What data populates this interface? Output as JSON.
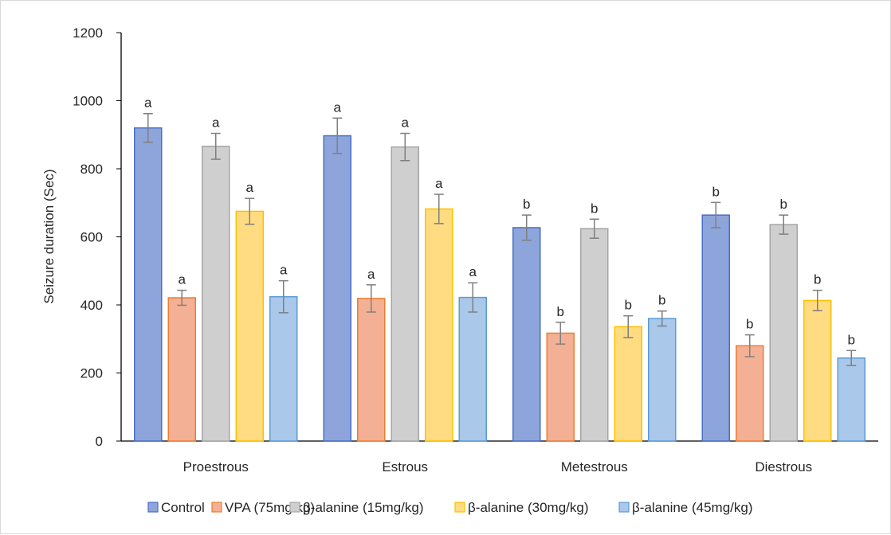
{
  "chart_data": {
    "type": "bar",
    "ylabel": "Seizure duration (Sec)",
    "xlabel": "",
    "ylim": [
      0,
      1200
    ],
    "yticks": [
      0,
      200,
      400,
      600,
      800,
      1000,
      1200
    ],
    "categories": [
      "Proestrous",
      "Estrous",
      "Metestrous",
      "Diestrous"
    ],
    "legend_position": "bottom",
    "grid": false,
    "series": [
      {
        "name": "Control",
        "color": "#8ea5db",
        "edge": "#4a6fc4",
        "values": [
          920,
          897,
          627,
          664
        ],
        "errors": [
          42,
          52,
          37,
          37
        ],
        "labels": [
          "a",
          "a",
          "b",
          "b"
        ]
      },
      {
        "name": "VPA (75mg/kg)",
        "color": "#f4b094",
        "edge": "#ed7d31",
        "values": [
          421,
          419,
          317,
          280
        ],
        "errors": [
          22,
          40,
          32,
          32
        ],
        "labels": [
          "a",
          "a",
          "b",
          "b"
        ]
      },
      {
        "name": "β-alanine (15mg/kg)",
        "color": "#cfcfcf",
        "edge": "#a5a5a5",
        "values": [
          866,
          864,
          624,
          636
        ],
        "errors": [
          38,
          40,
          28,
          28
        ],
        "labels": [
          "a",
          "a",
          "b",
          "b"
        ]
      },
      {
        "name": "β-alanine (30mg/kg)",
        "color": "#ffdb82",
        "edge": "#ffc000",
        "values": [
          675,
          682,
          336,
          413
        ],
        "errors": [
          38,
          43,
          32,
          30
        ],
        "labels": [
          "a",
          "a",
          "b",
          "b"
        ]
      },
      {
        "name": "β-alanine (45mg/kg)",
        "color": "#a9c8ea",
        "edge": "#5b9bd5",
        "values": [
          424,
          422,
          360,
          244
        ],
        "errors": [
          47,
          43,
          22,
          22
        ],
        "labels": [
          "a",
          "a",
          "b",
          "b"
        ]
      }
    ]
  }
}
